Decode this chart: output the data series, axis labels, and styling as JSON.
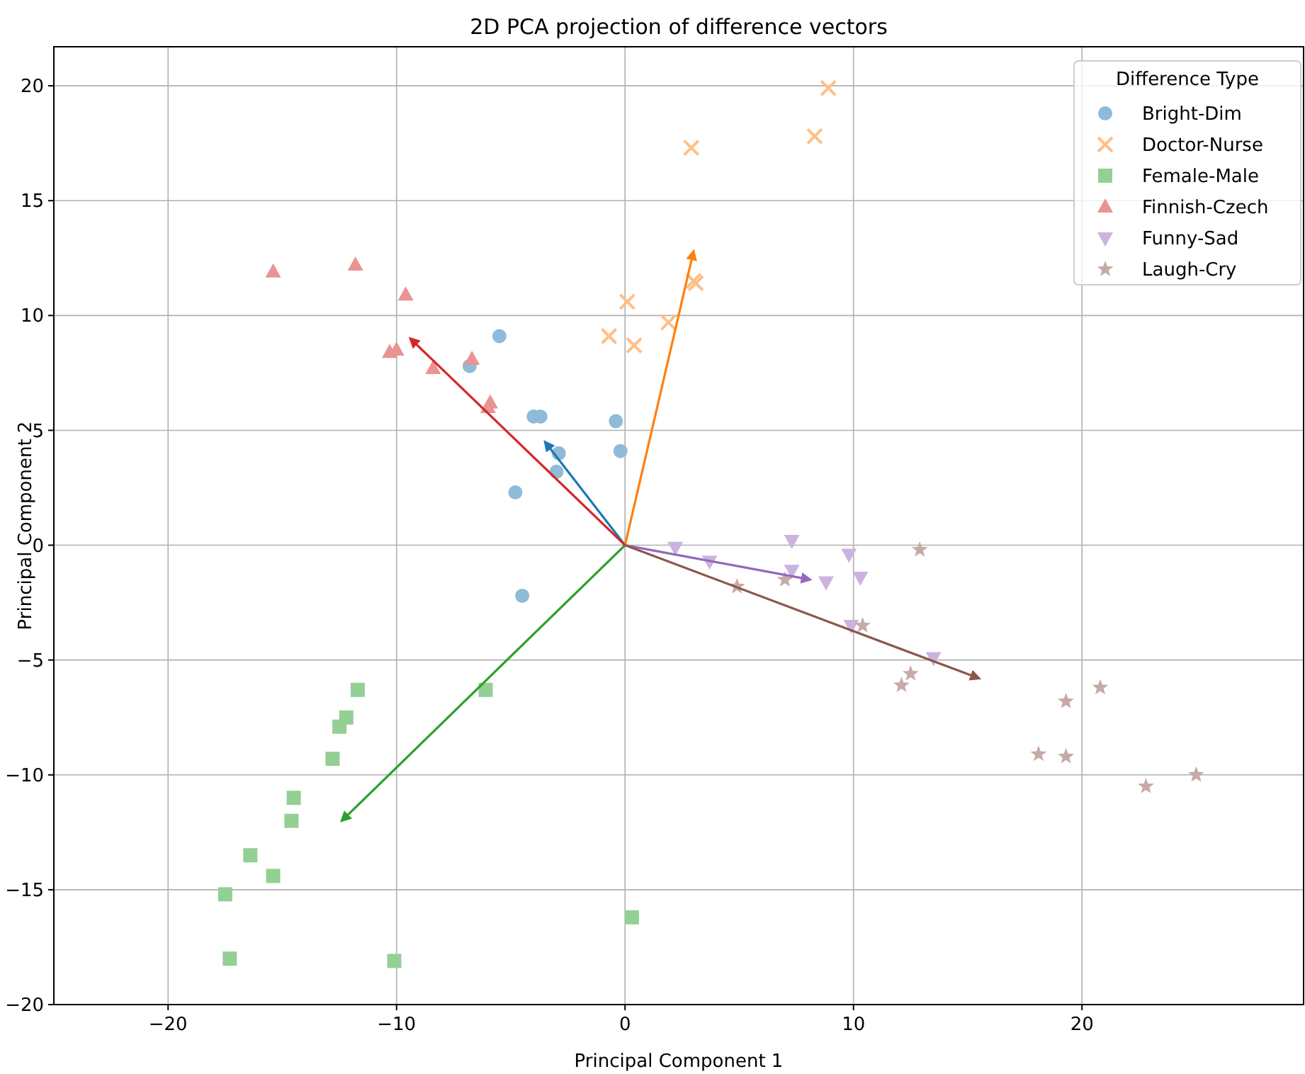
{
  "chart_data": {
    "type": "scatter",
    "title": "2D PCA projection of difference vectors",
    "xlabel": "Principal Component 1",
    "ylabel": "Principal Component 2",
    "legend_title": "Difference Type",
    "legend": "top right",
    "grid": true,
    "xlim": [
      -25,
      29.7
    ],
    "ylim": [
      -20,
      21.7
    ],
    "xticks": [
      {
        "value": -20,
        "label": "−20"
      },
      {
        "value": -10,
        "label": "−10"
      },
      0,
      10,
      20
    ],
    "yticks": [
      {
        "value": -20,
        "label": "−20"
      },
      {
        "value": -15,
        "label": "−15"
      },
      {
        "value": -10,
        "label": "−10"
      },
      {
        "value": -5,
        "label": "−5"
      },
      0,
      5,
      10,
      15,
      20
    ],
    "series": [
      {
        "name": "Bright-Dim",
        "color": "#8fbbd9",
        "marker": "circle",
        "x": [
          -5.5,
          -6.8,
          -4.0,
          -3.7,
          -0.4,
          -0.2,
          -2.9,
          -3.0,
          -4.8,
          -4.5
        ],
        "values": [
          9.1,
          7.8,
          5.6,
          5.6,
          5.4,
          4.1,
          4.0,
          3.2,
          2.3,
          -2.2
        ]
      },
      {
        "name": "Doctor-Nurse",
        "color": "#ffbf87",
        "marker": "cross",
        "x": [
          8.9,
          8.3,
          2.9,
          0.1,
          -0.7,
          0.4,
          1.9,
          3.0,
          3.1
        ],
        "values": [
          19.9,
          17.8,
          17.3,
          10.6,
          9.1,
          8.7,
          9.7,
          11.5,
          11.4
        ]
      },
      {
        "name": "Female-Male",
        "color": "#94cf94",
        "marker": "square",
        "x": [
          -11.7,
          -6.1,
          -12.2,
          -12.5,
          -12.8,
          -14.5,
          -14.6,
          -16.4,
          -15.4,
          -17.5,
          -17.3,
          -10.1,
          0.3
        ],
        "values": [
          -6.3,
          -6.3,
          -7.5,
          -7.9,
          -9.3,
          -11.0,
          -12.0,
          -13.5,
          -14.4,
          -15.2,
          -18.0,
          -18.1,
          -16.2
        ]
      },
      {
        "name": "Finnish-Czech",
        "color": "#ea9393",
        "marker": "triangle",
        "x": [
          -15.4,
          -11.8,
          -9.6,
          -10.3,
          -10.0,
          -8.4,
          -6.7,
          -5.9,
          -6.0
        ],
        "values": [
          11.9,
          12.2,
          10.9,
          8.4,
          8.5,
          7.7,
          8.1,
          6.2,
          6.0
        ]
      },
      {
        "name": "Funny-Sad",
        "color": "#cab4de",
        "marker": "triangle-down",
        "x": [
          2.2,
          3.7,
          7.3,
          7.3,
          8.8,
          9.8,
          10.3,
          9.9,
          13.5
        ],
        "values": [
          -0.1,
          -0.7,
          0.2,
          -1.1,
          -1.6,
          -0.4,
          -1.4,
          -3.5,
          -4.9
        ]
      },
      {
        "name": "Laugh-Cry",
        "color": "#c5aaa5",
        "marker": "star",
        "x": [
          4.9,
          7.0,
          12.9,
          10.4,
          12.5,
          12.1,
          19.3,
          20.8,
          18.1,
          19.3,
          22.8,
          25.0
        ],
        "values": [
          -1.8,
          -1.5,
          -0.2,
          -3.5,
          -5.6,
          -6.1,
          -6.8,
          -6.2,
          -9.1,
          -9.2,
          -10.5,
          -10.0
        ]
      },
      {
        "type": "line",
        "color": "#1f77b4",
        "x": [
          0,
          -3.5
        ],
        "values": [
          0,
          4.5
        ]
      },
      {
        "type": "line",
        "color": "#ff7f0e",
        "x": [
          0,
          3.0
        ],
        "values": [
          0,
          12.8
        ]
      },
      {
        "type": "line",
        "color": "#2ca02c",
        "x": [
          0,
          -12.4
        ],
        "values": [
          0,
          -12.0
        ]
      },
      {
        "type": "line",
        "color": "#d62728",
        "x": [
          0,
          -9.4
        ],
        "values": [
          0,
          9.0
        ]
      },
      {
        "type": "line",
        "color": "#9467bd",
        "x": [
          0,
          8.1
        ],
        "values": [
          0,
          -1.5
        ]
      },
      {
        "type": "line",
        "color": "#8c564b",
        "x": [
          0,
          15.5
        ],
        "values": [
          0,
          -5.8
        ]
      }
    ]
  }
}
